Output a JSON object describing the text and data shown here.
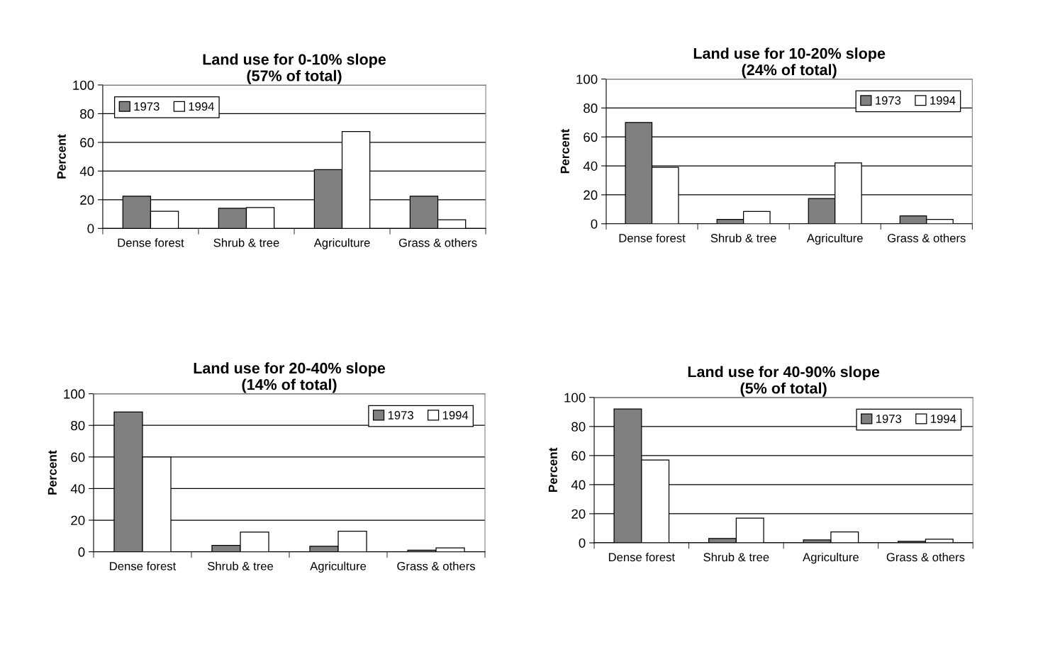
{
  "chart_data": [
    {
      "type": "bar",
      "title": "Land use for 0-10% slope\n(57% of total)",
      "ylabel": "Percent",
      "categories": [
        "Dense forest",
        "Shrub & tree",
        "Agriculture",
        "Grass & others"
      ],
      "series": [
        {
          "name": "1973",
          "color": "#808080",
          "values": [
            22.5,
            14,
            41,
            22.5
          ]
        },
        {
          "name": "1994",
          "color": "#ffffff",
          "values": [
            12,
            14.5,
            67.5,
            6
          ]
        }
      ],
      "ylim": [
        0,
        100
      ],
      "yticks": [
        0,
        20,
        40,
        60,
        80,
        100
      ],
      "grid": "y",
      "legend": "top left"
    },
    {
      "type": "bar",
      "title": "Land use for 10-20% slope\n(24% of total)",
      "ylabel": "Percent",
      "categories": [
        "Dense forest",
        "Shrub & tree",
        "Agriculture",
        "Grass & others"
      ],
      "series": [
        {
          "name": "1973",
          "color": "#808080",
          "values": [
            70,
            3,
            17.5,
            5.5
          ]
        },
        {
          "name": "1994",
          "color": "#ffffff",
          "values": [
            39,
            8.5,
            42,
            3
          ]
        }
      ],
      "ylim": [
        0,
        100
      ],
      "yticks": [
        0,
        20,
        40,
        60,
        80,
        100
      ],
      "grid": "y",
      "legend": "top right"
    },
    {
      "type": "bar",
      "title": "Land use for 20-40% slope\n(14% of total)",
      "ylabel": "Percent",
      "categories": [
        "Dense forest",
        "Shrub & tree",
        "Agriculture",
        "Grass & others"
      ],
      "series": [
        {
          "name": "1973",
          "color": "#808080",
          "values": [
            88.5,
            4,
            3.5,
            1
          ]
        },
        {
          "name": "1994",
          "color": "#ffffff",
          "values": [
            60,
            12.5,
            13,
            2.5
          ]
        }
      ],
      "ylim": [
        0,
        100
      ],
      "yticks": [
        0,
        20,
        40,
        60,
        80,
        100
      ],
      "grid": "y",
      "legend": "top right"
    },
    {
      "type": "bar",
      "title": "Land use for 40-90% slope\n(5% of total)",
      "ylabel": "Percent",
      "categories": [
        "Dense forest",
        "Shrub & tree",
        "Agriculture",
        "Grass & others"
      ],
      "series": [
        {
          "name": "1973",
          "color": "#808080",
          "values": [
            92,
            3,
            2,
            1
          ]
        },
        {
          "name": "1994",
          "color": "#ffffff",
          "values": [
            57,
            17,
            7.5,
            2.5
          ]
        }
      ],
      "ylim": [
        0,
        100
      ],
      "yticks": [
        0,
        20,
        40,
        60,
        80,
        100
      ],
      "grid": "y",
      "legend": "top right"
    }
  ]
}
